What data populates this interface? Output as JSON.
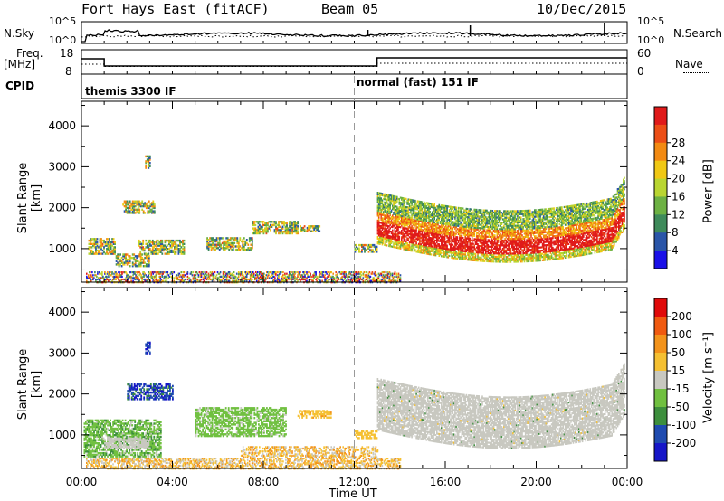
{
  "header": {
    "title": "Fort Hays East (fitACF)",
    "beam": "Beam 05",
    "date": "10/Dec/2015"
  },
  "top_panels": {
    "nsky_label": "N.Sky",
    "nsky_ticks": [
      "10^5",
      "10^0"
    ],
    "nsearch_label": "N.Search",
    "nsearch_ticks": [
      "10^5",
      "10^0"
    ],
    "freq_label": "Freq.",
    "freq_unit": "[MHz]",
    "freq_ticks": [
      "18",
      "8"
    ],
    "nave_label": "Nave",
    "nave_ticks": [
      "60",
      "0"
    ],
    "cpid_label": "CPID",
    "cpid_segments": [
      {
        "label": "themis 3300 IF",
        "start_hour": 0,
        "end_hour": 12
      },
      {
        "label": "normal (fast) 151 IF",
        "start_hour": 12,
        "end_hour": 24
      }
    ]
  },
  "chart_data": [
    {
      "type": "heatmap",
      "title": "",
      "ylabel": "Slant Range [km]",
      "xlabel": "Time UT",
      "x_ticks": [
        "00:00",
        "04:00",
        "08:00",
        "12:00",
        "16:00",
        "20:00",
        "00:00"
      ],
      "xlim_hours": [
        0,
        24
      ],
      "y_ticks": [
        1000,
        2000,
        3000,
        4000
      ],
      "ylim_km": [
        180,
        4600
      ],
      "colorbar": {
        "label": "Power [dB]",
        "ticks": [
          "4",
          "8",
          "12",
          "16",
          "20",
          "24",
          "28"
        ],
        "range": [
          0,
          30
        ],
        "colors": [
          "#1a10e8",
          "#2a55a8",
          "#3e8a5a",
          "#6db143",
          "#b9d531",
          "#f0c814",
          "#f28a12",
          "#ec4e16",
          "#e01a1a"
        ]
      },
      "features": [
        {
          "hours": [
            13.0,
            23.9
          ],
          "range_km": [
            900,
            2600
          ],
          "power_db": [
            4,
            30
          ],
          "note": "main backscatter band"
        },
        {
          "hours": [
            0.1,
            4.5
          ],
          "range_km": [
            300,
            2200
          ],
          "power_db": [
            4,
            22
          ]
        },
        {
          "hours": [
            5.5,
            10.5
          ],
          "range_km": [
            900,
            1700
          ],
          "power_db": [
            6,
            16
          ]
        },
        {
          "hours": [
            0,
            14
          ],
          "range_km": [
            180,
            450
          ],
          "power_db": [
            0,
            30
          ],
          "note": "ground scatter near range"
        }
      ]
    },
    {
      "type": "heatmap",
      "title": "",
      "ylabel": "Slant Range [km]",
      "xlabel": "Time UT",
      "x_ticks": [
        "00:00",
        "04:00",
        "08:00",
        "12:00",
        "16:00",
        "20:00",
        "00:00"
      ],
      "xlim_hours": [
        0,
        24
      ],
      "y_ticks": [
        1000,
        2000,
        3000,
        4000
      ],
      "ylim_km": [
        180,
        4600
      ],
      "colorbar": {
        "label": "Velocity [m s⁻¹]",
        "ticks": [
          "200",
          "100",
          "50",
          "15",
          "-15",
          "-50",
          "-100",
          "-200"
        ],
        "range": [
          -250,
          250
        ],
        "colors": [
          "#e00a0a",
          "#f05a10",
          "#f3931b",
          "#f5c032",
          "#c8c8c0",
          "#70c040",
          "#3d8f3d",
          "#1f4bb0",
          "#1616c8"
        ]
      },
      "features": [
        {
          "hours": [
            13.0,
            23.9
          ],
          "range_km": [
            900,
            2600
          ],
          "velocity": [
            -15,
            15
          ],
          "note": "ground scatter (grey)"
        },
        {
          "hours": [
            2.0,
            4.0
          ],
          "range_km": [
            1900,
            2300
          ],
          "velocity": [
            100,
            250
          ]
        },
        {
          "hours": [
            0.1,
            3.5
          ],
          "range_km": [
            500,
            1400
          ],
          "velocity": [
            15,
            100
          ]
        },
        {
          "hours": [
            5.0,
            9.0
          ],
          "range_km": [
            1000,
            1700
          ],
          "velocity": [
            15,
            80
          ]
        },
        {
          "hours": [
            8.0,
            14.0
          ],
          "range_km": [
            180,
            900
          ],
          "velocity": [
            -100,
            -15
          ]
        }
      ]
    }
  ]
}
